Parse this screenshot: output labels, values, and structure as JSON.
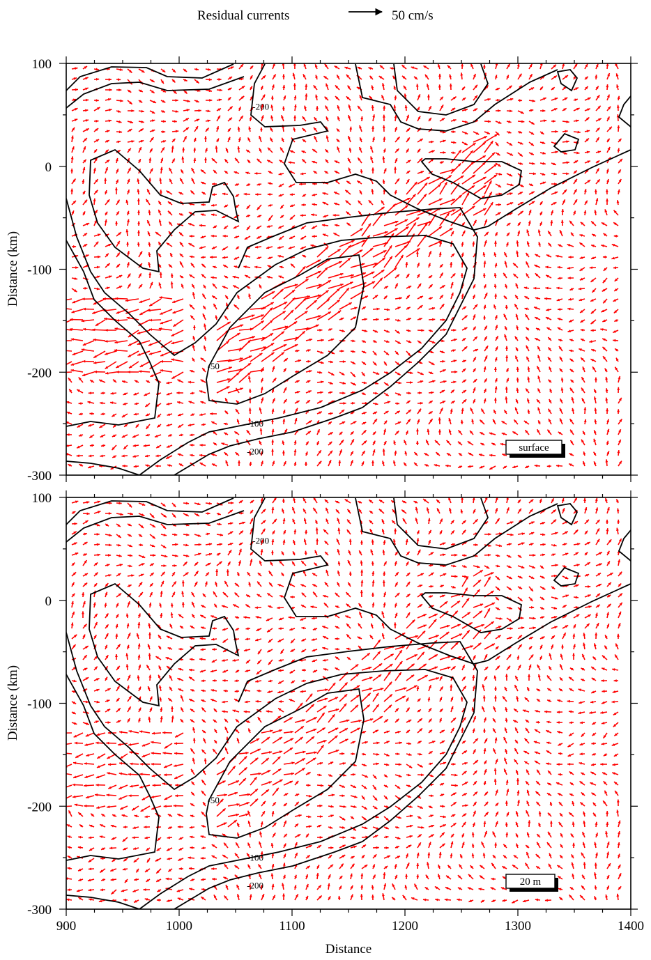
{
  "header": {
    "title": "Residual currents",
    "reference_label": "50 cm/s",
    "reference_speed_cm_s": 50
  },
  "colors": {
    "vector": "#ff0000",
    "contour": "#000000",
    "frame": "#000000",
    "background": "#ffffff"
  },
  "chart_data": [
    {
      "type": "vector-field",
      "panel_label": "surface",
      "xlabel": "",
      "ylabel": "Distance (km)",
      "xlim": [
        900,
        1400
      ],
      "ylim": [
        -300,
        100
      ],
      "x_ticks": [],
      "y_ticks": [
        100,
        0,
        -100,
        -200,
        -300
      ],
      "contour_labels": [
        {
          "text": "-200",
          "x": 1065,
          "y": 55
        },
        {
          "text": "-50",
          "x": 1025,
          "y": -197
        },
        {
          "text": "-100",
          "x": 1060,
          "y": -253
        },
        {
          "text": "-200",
          "x": 1060,
          "y": -280
        }
      ],
      "vector_strength": 1.0,
      "grid": false
    },
    {
      "type": "vector-field",
      "panel_label": "20 m",
      "xlabel": "Distance",
      "ylabel": "Distance (km)",
      "xlim": [
        900,
        1400
      ],
      "ylim": [
        -300,
        100
      ],
      "x_ticks": [
        900,
        1000,
        1100,
        1200,
        1300,
        1400
      ],
      "y_ticks": [
        100,
        0,
        -100,
        -200,
        -300
      ],
      "contour_labels": [
        {
          "text": "-200",
          "x": 1065,
          "y": 55
        },
        {
          "text": "-50",
          "x": 1025,
          "y": -197
        },
        {
          "text": "-100",
          "x": 1060,
          "y": -253
        },
        {
          "text": "-200",
          "x": 1060,
          "y": -280
        }
      ],
      "vector_strength": 0.55,
      "grid": false
    }
  ]
}
